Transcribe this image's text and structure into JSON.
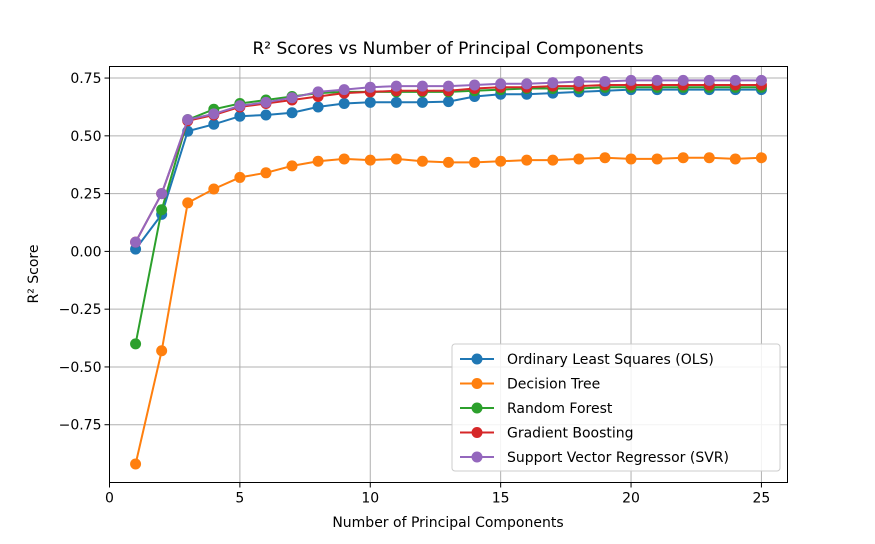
{
  "chart_data": {
    "type": "line",
    "title": "R² Scores vs Number of Principal Components",
    "xlabel": "Number of Principal Components",
    "ylabel": "R² Score",
    "xlim": [
      0,
      26
    ],
    "ylim": [
      -1,
      0.8
    ],
    "xticks": [
      0,
      5,
      10,
      15,
      20,
      25
    ],
    "xtick_labels": [
      "0",
      "5",
      "10",
      "15",
      "20",
      "25"
    ],
    "yticks": [
      -0.75,
      -0.5,
      -0.25,
      0.0,
      0.25,
      0.5,
      0.75
    ],
    "ytick_labels": [
      "−0.75",
      "−0.50",
      "−0.25",
      "0.00",
      "0.25",
      "0.50",
      "0.75"
    ],
    "grid": true,
    "legend_position": "lower-right",
    "x": [
      1,
      2,
      3,
      4,
      5,
      6,
      7,
      8,
      9,
      10,
      11,
      12,
      13,
      14,
      15,
      16,
      17,
      18,
      19,
      20,
      21,
      22,
      23,
      24,
      25
    ],
    "series": [
      {
        "name": "Ordinary Least Squares (OLS)",
        "color": "#1f77b4",
        "values": [
          0.01,
          0.16,
          0.52,
          0.55,
          0.585,
          0.59,
          0.6,
          0.625,
          0.64,
          0.645,
          0.645,
          0.645,
          0.648,
          0.67,
          0.68,
          0.68,
          0.685,
          0.69,
          0.695,
          0.7,
          0.7,
          0.7,
          0.7,
          0.7,
          0.7
        ]
      },
      {
        "name": "Decision Tree",
        "color": "#ff7f0e",
        "values": [
          -0.92,
          -0.43,
          0.21,
          0.27,
          0.32,
          0.34,
          0.37,
          0.39,
          0.4,
          0.395,
          0.4,
          0.39,
          0.385,
          0.385,
          0.39,
          0.395,
          0.395,
          0.4,
          0.405,
          0.4,
          0.4,
          0.405,
          0.405,
          0.4,
          0.405
        ]
      },
      {
        "name": "Random Forest",
        "color": "#2ca02c",
        "values": [
          -0.4,
          0.18,
          0.57,
          0.615,
          0.64,
          0.655,
          0.67,
          0.685,
          0.69,
          0.69,
          0.69,
          0.69,
          0.69,
          0.695,
          0.7,
          0.705,
          0.705,
          0.705,
          0.71,
          0.71,
          0.71,
          0.71,
          0.71,
          0.71,
          0.71
        ]
      },
      {
        "name": "Gradient Boosting",
        "color": "#d62728",
        "values": [
          0.04,
          0.25,
          0.565,
          0.59,
          0.625,
          0.64,
          0.655,
          0.67,
          0.685,
          0.69,
          0.695,
          0.695,
          0.695,
          0.705,
          0.71,
          0.71,
          0.715,
          0.715,
          0.72,
          0.72,
          0.72,
          0.72,
          0.72,
          0.72,
          0.72
        ]
      },
      {
        "name": "Support Vector Regressor (SVR)",
        "color": "#9467bd",
        "values": [
          0.04,
          0.25,
          0.57,
          0.595,
          0.63,
          0.645,
          0.665,
          0.69,
          0.7,
          0.71,
          0.715,
          0.715,
          0.715,
          0.72,
          0.725,
          0.725,
          0.73,
          0.735,
          0.735,
          0.74,
          0.74,
          0.74,
          0.74,
          0.74,
          0.74
        ]
      }
    ]
  }
}
